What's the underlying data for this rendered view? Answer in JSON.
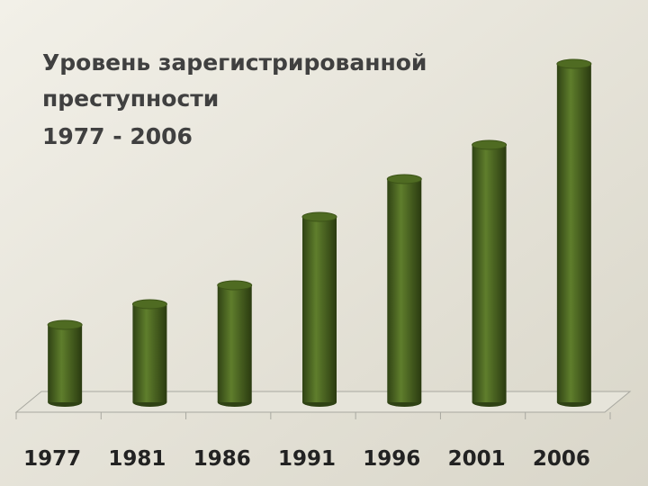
{
  "chart_data": {
    "type": "bar",
    "title_lines": [
      "Уровень зарегистрированной",
      "преступности",
      "1977 - 2006"
    ],
    "categories": [
      "1977",
      "1981",
      "1986",
      "1991",
      "1996",
      "2001",
      "2006"
    ],
    "values": [
      86,
      109,
      130,
      206,
      248,
      286,
      376
    ],
    "color": "#4f6b22"
  }
}
